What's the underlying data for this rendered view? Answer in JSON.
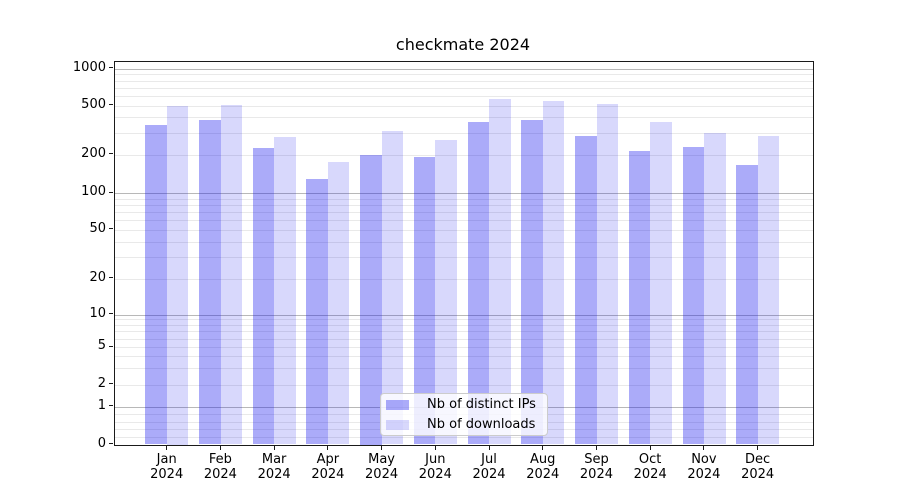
{
  "figure": {
    "title": "checkmate 2024"
  },
  "chart_data": {
    "type": "bar",
    "title": "checkmate 2024",
    "categories": [
      "Jan",
      "Feb",
      "Mar",
      "Apr",
      "May",
      "Jun",
      "Jul",
      "Aug",
      "Sep",
      "Oct",
      "Nov",
      "Dec"
    ],
    "category_year": "2024",
    "series": [
      {
        "name": "Nb of distinct IPs",
        "color": "rgba(15,15,238,0.35)",
        "values": [
          345,
          380,
          225,
          130,
          200,
          190,
          365,
          380,
          285,
          215,
          230,
          165
        ]
      },
      {
        "name": "Nb of downloads",
        "color": "rgba(15,15,238,0.16)",
        "values": [
          500,
          505,
          275,
          175,
          310,
          260,
          570,
          540,
          510,
          365,
          300,
          285
        ]
      }
    ],
    "yscale": "symlog",
    "yticks": [
      0,
      1,
      2,
      5,
      10,
      20,
      50,
      100,
      200,
      500,
      1000
    ],
    "ylim": [
      0,
      1150
    ],
    "grid": true,
    "legend_position": "lower center",
    "axis_color": "#1a1a1a",
    "grid_minor_color": "#e9e9e9",
    "grid_major_color": "#b8b8b8"
  }
}
